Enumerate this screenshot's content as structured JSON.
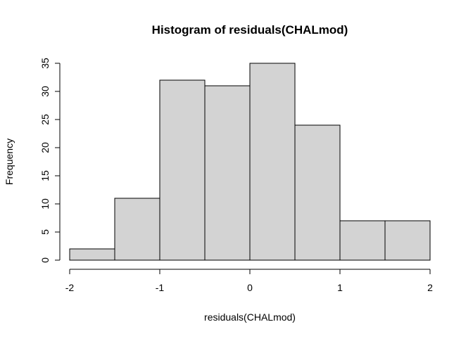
{
  "chart_data": {
    "type": "bar",
    "subtype": "histogram",
    "title": "Histogram of residuals(CHALmod)",
    "xlabel": "residuals(CHALmod)",
    "ylabel": "Frequency",
    "bin_edges": [
      -2,
      -1.5,
      -1,
      -0.5,
      0,
      0.5,
      1,
      1.5,
      2
    ],
    "counts": [
      2,
      11,
      32,
      31,
      35,
      24,
      7,
      7
    ],
    "xlim": [
      -2,
      2
    ],
    "ylim": [
      0,
      35
    ],
    "x_ticks": [
      -2,
      -1,
      0,
      1,
      2
    ],
    "y_ticks": [
      0,
      5,
      10,
      15,
      20,
      25,
      30,
      35
    ],
    "grid": false,
    "legend": "none",
    "bar_fill": "#d3d3d3",
    "bar_stroke": "#000000"
  }
}
